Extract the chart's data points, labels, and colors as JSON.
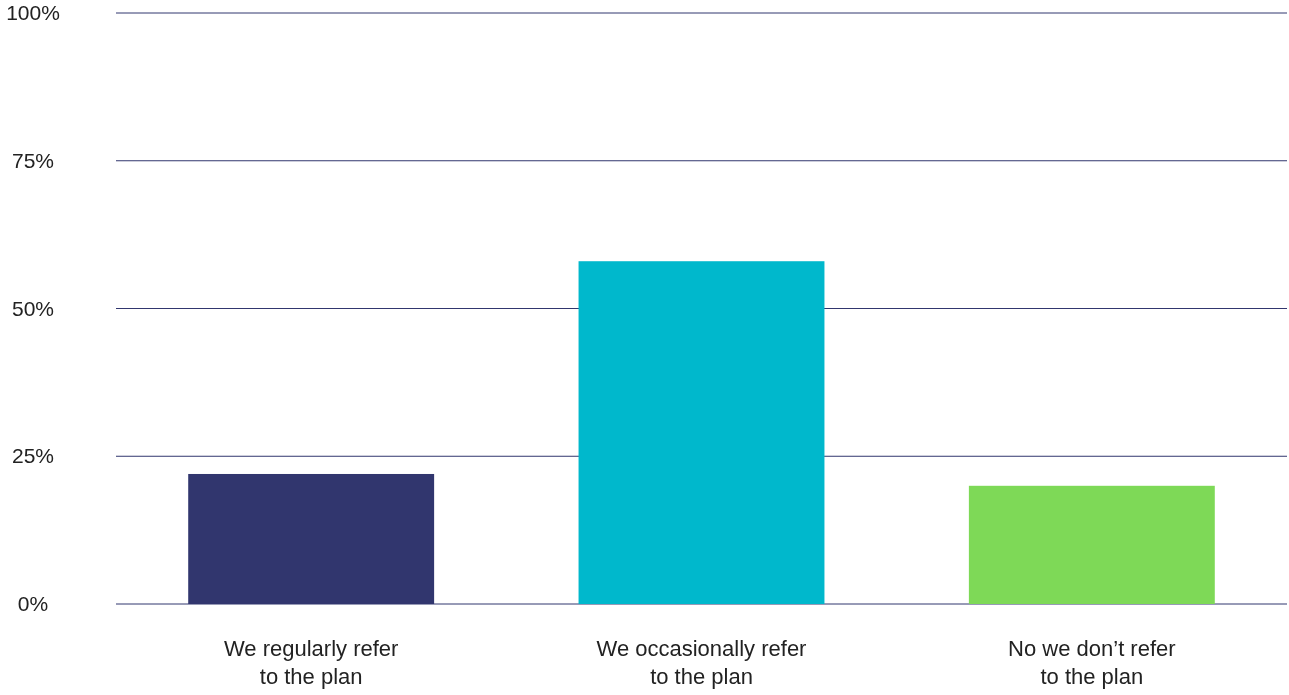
{
  "chart_data": {
    "type": "bar",
    "categories": [
      "We regularly refer\nto the plan",
      "We occasionally refer\nto the plan",
      "No we don’t refer\nto the plan"
    ],
    "values": [
      22,
      58,
      20
    ],
    "colors": [
      "#31366e",
      "#00b8cc",
      "#7ed957"
    ],
    "ylim": [
      0,
      100
    ],
    "yticks": [
      {
        "value": 0,
        "label": "0%"
      },
      {
        "value": 25,
        "label": "25%"
      },
      {
        "value": 50,
        "label": "50%"
      },
      {
        "value": 75,
        "label": "75%"
      },
      {
        "value": 100,
        "label": "100%"
      }
    ],
    "grid": "y"
  }
}
